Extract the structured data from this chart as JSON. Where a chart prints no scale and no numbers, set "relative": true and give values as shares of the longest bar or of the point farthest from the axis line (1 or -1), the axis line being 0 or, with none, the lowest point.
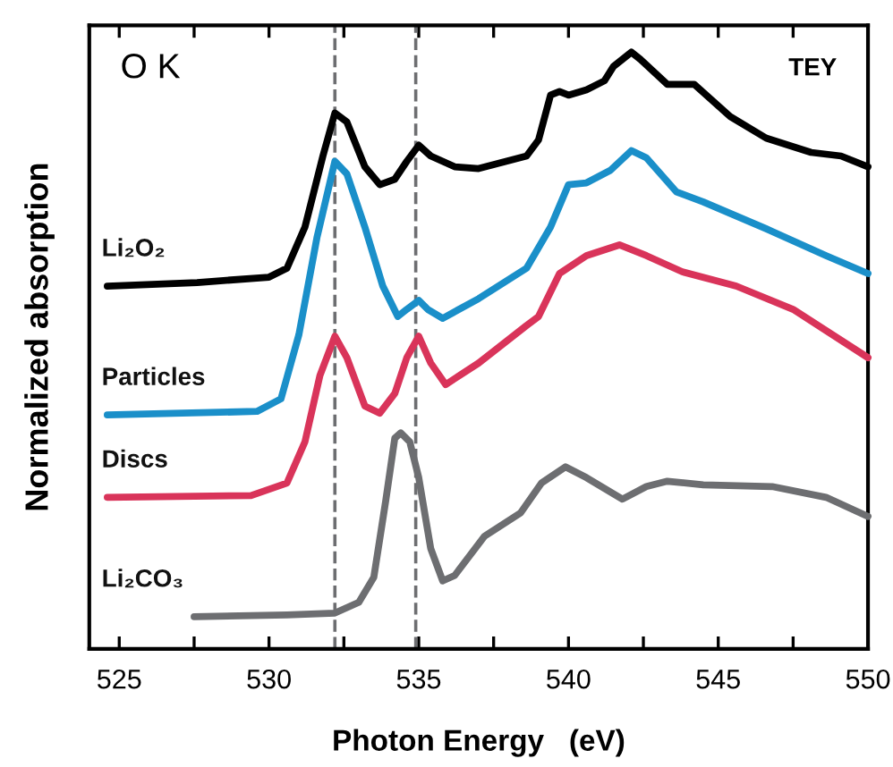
{
  "chart_data": {
    "type": "line",
    "relative": true,
    "xlabel": "Photon Energy   (eV)",
    "ylabel": "Normalized absorption",
    "annotations": [
      "O K",
      "TEY"
    ],
    "xlim": [
      524,
      550
    ],
    "xticks": [
      525,
      {
        "value": 527.5,
        "label": null
      },
      530,
      {
        "value": 532.5,
        "label": null
      },
      535,
      {
        "value": 537.5,
        "label": null
      },
      540,
      {
        "value": 542.5,
        "label": null
      },
      545,
      {
        "value": 547.5,
        "label": null
      },
      550
    ],
    "tick_labels": "x",
    "legend": false,
    "grid": false,
    "marker": "none",
    "line_style": "solid",
    "ref_lines": [
      {
        "axis": "x",
        "value": 532.2,
        "color": "#6d6e71",
        "line_style": "dashed"
      },
      {
        "axis": "x",
        "value": 534.9,
        "color": "#6d6e71",
        "line_style": "dashed"
      }
    ],
    "series": [
      {
        "name": "Li₂O₂",
        "color": "#000000",
        "x": [
          524.6,
          527.6,
          530.0,
          530.6,
          531.2,
          531.8,
          532.2,
          532.6,
          533.2,
          533.7,
          534.2,
          534.6,
          535.0,
          535.4,
          536.2,
          537.0,
          538.6,
          539.0,
          539.4,
          539.7,
          540.0,
          540.6,
          541.2,
          541.5,
          542.1,
          542.4,
          543.3,
          544.2,
          545.4,
          546.6,
          548.1,
          549.1,
          550.0
        ],
        "values": [
          0.608,
          0.614,
          0.623,
          0.638,
          0.707,
          0.826,
          0.898,
          0.883,
          0.808,
          0.778,
          0.787,
          0.817,
          0.844,
          0.826,
          0.808,
          0.805,
          0.826,
          0.853,
          0.928,
          0.934,
          0.928,
          0.937,
          0.952,
          0.976,
          1,
          0.988,
          0.946,
          0.946,
          0.892,
          0.856,
          0.832,
          0.826,
          0.808
        ]
      },
      {
        "name": "Particles",
        "color": "#1a8fc9",
        "x": [
          524.6,
          529.6,
          530.4,
          531.0,
          531.6,
          532.2,
          532.6,
          533.2,
          533.8,
          534.3,
          534.6,
          535.0,
          535.3,
          535.8,
          537.0,
          538.6,
          539.4,
          540.0,
          540.6,
          541.4,
          542.1,
          542.6,
          543.6,
          544.5,
          546.6,
          548.6,
          550.0
        ],
        "values": [
          0.392,
          0.398,
          0.419,
          0.527,
          0.689,
          0.817,
          0.796,
          0.707,
          0.608,
          0.557,
          0.569,
          0.584,
          0.569,
          0.554,
          0.587,
          0.638,
          0.707,
          0.778,
          0.781,
          0.802,
          0.835,
          0.823,
          0.766,
          0.749,
          0.704,
          0.659,
          0.629
        ]
      },
      {
        "name": "Discs",
        "color": "#d9345a",
        "x": [
          524.6,
          529.4,
          530.6,
          531.2,
          531.7,
          532.2,
          532.6,
          533.2,
          533.7,
          534.2,
          534.6,
          535.0,
          535.4,
          535.9,
          537.0,
          538.6,
          539.0,
          539.7,
          540.6,
          541.7,
          542.6,
          543.8,
          545.6,
          547.5,
          550.0
        ],
        "values": [
          0.254,
          0.257,
          0.278,
          0.347,
          0.458,
          0.524,
          0.488,
          0.407,
          0.395,
          0.428,
          0.488,
          0.524,
          0.479,
          0.443,
          0.479,
          0.542,
          0.557,
          0.629,
          0.659,
          0.677,
          0.659,
          0.632,
          0.608,
          0.569,
          0.488
        ]
      },
      {
        "name": "Li₂CO₃",
        "color": "#6d6e71",
        "x": [
          527.5,
          530.6,
          532.2,
          533.0,
          533.5,
          533.9,
          534.2,
          534.4,
          534.7,
          535.0,
          535.4,
          535.8,
          536.2,
          537.2,
          538.4,
          539.1,
          539.9,
          540.6,
          541.8,
          542.6,
          543.3,
          544.5,
          546.8,
          548.6,
          550.0
        ],
        "values": [
          0.054,
          0.057,
          0.06,
          0.078,
          0.12,
          0.249,
          0.353,
          0.362,
          0.347,
          0.287,
          0.168,
          0.114,
          0.123,
          0.189,
          0.228,
          0.278,
          0.305,
          0.287,
          0.251,
          0.272,
          0.281,
          0.275,
          0.272,
          0.254,
          0.222
        ]
      }
    ]
  }
}
